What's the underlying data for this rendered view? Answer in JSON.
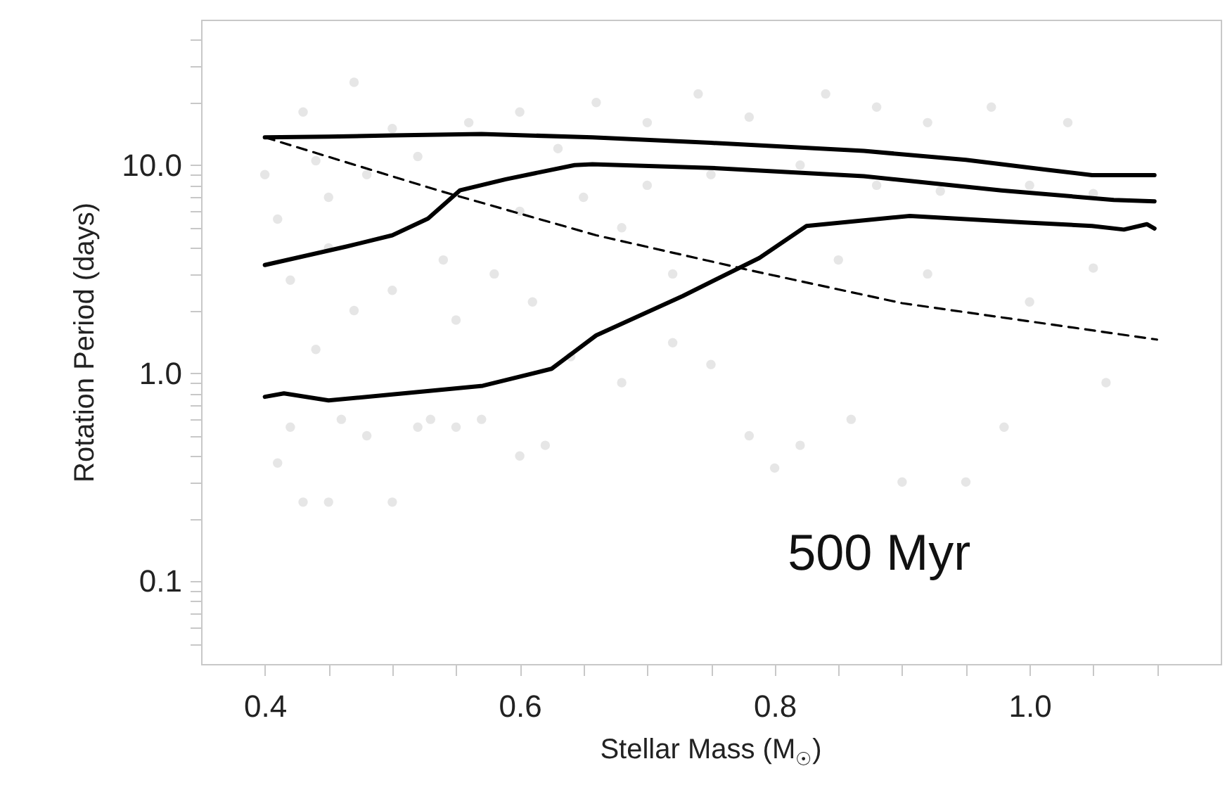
{
  "chart_data": {
    "type": "line",
    "xlabel": "Stellar Mass (M$_{☉}$)",
    "ylabel": "Rotation Period (days)",
    "annotations": [
      "500 Myr"
    ],
    "xlim": [
      0.35,
      1.15
    ],
    "xticks": [
      0.4,
      {
        "value": 0.45,
        "label": null
      },
      {
        "value": 0.5,
        "label": null
      },
      {
        "value": 0.55,
        "label": null
      },
      0.6,
      {
        "value": 0.65,
        "label": null
      },
      {
        "value": 0.7,
        "label": null
      },
      {
        "value": 0.75,
        "label": null
      },
      0.8,
      {
        "value": 0.85,
        "label": null
      },
      {
        "value": 0.9,
        "label": null
      },
      {
        "value": 0.95,
        "label": null
      },
      {
        "value": 1.0,
        "label": "1.0"
      },
      {
        "value": 1.05,
        "label": null
      },
      {
        "value": 1.1,
        "label": null
      }
    ],
    "ylim": [
      0.04,
      50
    ],
    "yticks": [
      {
        "value": 0.05,
        "label": null
      },
      {
        "value": 0.06,
        "label": null
      },
      {
        "value": 0.07,
        "label": null
      },
      {
        "value": 0.08,
        "label": null
      },
      {
        "value": 0.09,
        "label": null
      },
      0.1,
      {
        "value": 0.2,
        "label": null
      },
      {
        "value": 0.3,
        "label": null
      },
      {
        "value": 0.4,
        "label": null
      },
      {
        "value": 0.5,
        "label": null
      },
      {
        "value": 0.6,
        "label": null
      },
      {
        "value": 0.7,
        "label": null
      },
      {
        "value": 0.8,
        "label": null
      },
      {
        "value": 0.9,
        "label": null
      },
      {
        "value": 1,
        "label": "1.0"
      },
      {
        "value": 2,
        "label": null
      },
      {
        "value": 3,
        "label": null
      },
      {
        "value": 4,
        "label": null
      },
      {
        "value": 5,
        "label": null
      },
      {
        "value": 6,
        "label": null
      },
      {
        "value": 7,
        "label": null
      },
      {
        "value": 8,
        "label": null
      },
      {
        "value": 9,
        "label": null
      },
      {
        "value": 10,
        "label": "10.0"
      },
      {
        "value": 20,
        "label": null
      },
      {
        "value": 30,
        "label": null
      },
      {
        "value": 40,
        "label": null
      }
    ],
    "log": "y",
    "grid": false,
    "series": [
      {
        "type": "scatter",
        "marker": "circle",
        "color": "#dcdcdc",
        "x": [
          0.41,
          0.43,
          0.45,
          0.5,
          0.48,
          0.52,
          0.55,
          0.6,
          0.62,
          0.42,
          0.46,
          0.53,
          0.57,
          0.44,
          0.47,
          0.42,
          0.5,
          0.55,
          0.58,
          0.61,
          0.64,
          0.68,
          0.72,
          0.75,
          0.78,
          0.82,
          0.8,
          0.86,
          0.9,
          0.95,
          0.98,
          1.06,
          0.41,
          0.45,
          0.48,
          0.52,
          0.56,
          0.6,
          0.63,
          0.66,
          0.7,
          0.74,
          0.78,
          0.84,
          0.88,
          0.92,
          0.97,
          1.03,
          0.43,
          0.47,
          0.5,
          0.65,
          0.7,
          0.75,
          0.82,
          0.88,
          0.93,
          1.0,
          1.05,
          0.85,
          0.92,
          1.05,
          1.0,
          0.68,
          0.72,
          0.6,
          0.54,
          0.45,
          0.4,
          0.44
        ],
        "values": [
          0.37,
          0.24,
          0.24,
          0.24,
          0.5,
          0.55,
          0.55,
          0.4,
          0.45,
          0.55,
          0.6,
          0.6,
          0.6,
          1.3,
          2.0,
          2.8,
          2.5,
          1.8,
          3.0,
          2.2,
          1.2,
          0.9,
          1.4,
          1.1,
          0.5,
          0.45,
          0.35,
          0.6,
          0.3,
          0.3,
          0.55,
          0.9,
          5.5,
          7,
          9,
          11,
          16,
          18,
          12,
          20,
          16,
          22,
          17,
          22,
          19,
          16,
          19,
          16,
          18,
          25,
          15,
          7,
          8,
          9,
          10,
          8,
          7.5,
          8,
          7.3,
          3.5,
          3.0,
          3.2,
          2.2,
          5,
          3.0,
          6,
          3.5,
          4.0,
          9,
          10.5
        ]
      },
      {
        "color": "#000000",
        "x": [
          0.4,
          0.45,
          0.5,
          0.57,
          0.657,
          0.75,
          0.87,
          0.95,
          1.013,
          1.049,
          1.098
        ],
        "values": [
          13.6,
          13.7,
          13.9,
          14.1,
          13.6,
          12.8,
          11.7,
          10.6,
          9.5,
          8.95,
          8.95
        ]
      },
      {
        "color": "#000000",
        "x": [
          0.4,
          0.464,
          0.5,
          0.528,
          0.553,
          0.589,
          0.643,
          0.657,
          0.75,
          0.87,
          0.978,
          1.066,
          1.098
        ],
        "values": [
          3.31,
          4.06,
          4.6,
          5.53,
          7.56,
          8.55,
          10.0,
          10.1,
          9.7,
          8.85,
          7.56,
          6.8,
          6.7
        ]
      },
      {
        "color": "#000000",
        "x": [
          0.4,
          0.415,
          0.45,
          0.5,
          0.571,
          0.625,
          0.66,
          0.728,
          0.788,
          0.825,
          0.906,
          0.996,
          1.049,
          1.074,
          1.092,
          1.098
        ],
        "values": [
          0.77,
          0.8,
          0.74,
          0.79,
          0.87,
          1.05,
          1.52,
          2.35,
          3.58,
          5.1,
          5.7,
          5.3,
          5.1,
          4.9,
          5.2,
          4.96
        ]
      },
      {
        "line_style": "dashed",
        "color": "#000000",
        "x": [
          0.4,
          0.536,
          0.66,
          0.782,
          0.9,
          1.1
        ],
        "values": [
          13.6,
          7.56,
          4.6,
          3.11,
          2.17,
          1.45
        ]
      }
    ]
  }
}
